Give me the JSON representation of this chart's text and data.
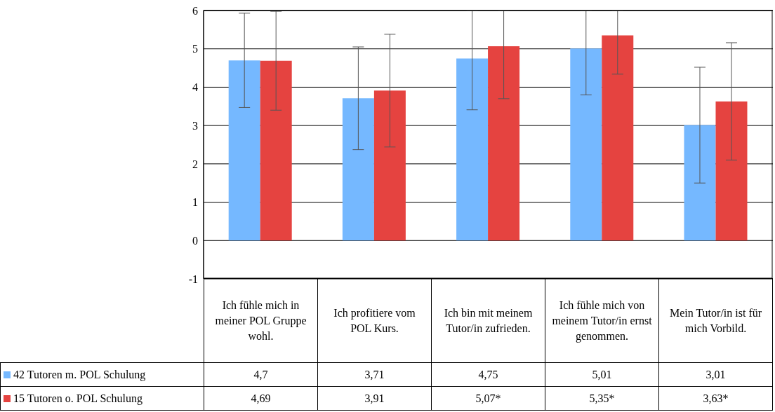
{
  "chart_data": {
    "type": "bar",
    "categories": [
      "Ich fühle mich in meiner POL Gruppe wohl.",
      "Ich profitiere vom POL Kurs.",
      "Ich bin mit meinem Tutor/in zufrieden.",
      "Ich fühle mich von meinem Tutor/in ernst genommen.",
      "Mein Tutor/in ist für mich Vorbild."
    ],
    "series": [
      {
        "name": "42 Tutoren m. POL Schulung",
        "color": "#75b8ff",
        "values": [
          4.7,
          3.71,
          4.75,
          5.01,
          3.01
        ],
        "errors": [
          1.23,
          1.34,
          [
            3.41,
            6
          ],
          [
            3.8,
            6
          ],
          1.51
        ],
        "value_labels": [
          "4,7",
          "3,71",
          "4,75",
          "5,01",
          "3,01"
        ]
      },
      {
        "name": "15 Tutoren o. POL Schulung",
        "color": "#e54340",
        "values": [
          4.69,
          3.91,
          5.07,
          5.35,
          3.63
        ],
        "errors": [
          1.29,
          1.47,
          [
            3.7,
            6
          ],
          [
            4.34,
            6
          ],
          1.53
        ],
        "value_labels": [
          "4,69",
          "3,91",
          "5,07*",
          "5,35*",
          "3,63*"
        ]
      }
    ],
    "ylim": [
      -1,
      6
    ],
    "yticks": [
      -1,
      0,
      1,
      2,
      3,
      4,
      5,
      6
    ],
    "grid": "y",
    "legend": "bottom left"
  }
}
